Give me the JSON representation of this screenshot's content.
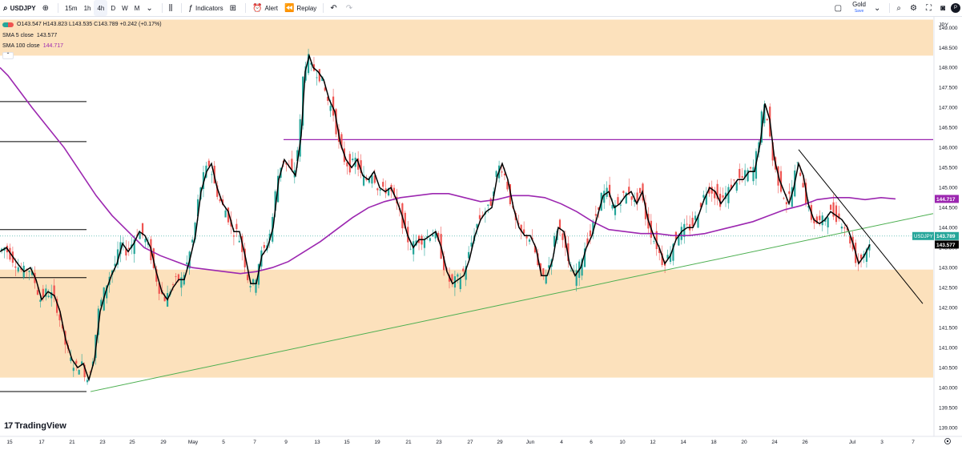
{
  "toolbar": {
    "symbol": "USDJPY",
    "add_symbol_icon": "plus-circle-icon",
    "intervals": [
      "15m",
      "1h",
      "4h",
      "D",
      "W",
      "M"
    ],
    "active_interval": "4h",
    "indicators_label": "Indicators",
    "alert_label": "Alert",
    "replay_label": "Replay",
    "layout_name": "Gold",
    "save_label": "Save",
    "avatar_letter": "P"
  },
  "legend": {
    "ohlc": "O143.547 H143.823 L143.535 C143.789 +0.242 (+0.17%)",
    "sma5_label": "SMA 5 close",
    "sma5_value": "143.577",
    "sma100_label": "SMA 100 close",
    "sma100_value": "144.717"
  },
  "branding": {
    "logo_text": "TradingView"
  },
  "colors": {
    "up": "#26a69a",
    "down": "#ef5350",
    "sma5": "#000000",
    "sma100": "#9c27b0",
    "zone": "#fbdcb0",
    "trend_up": "#4caf50",
    "trend_down": "#000000",
    "resistance": "#9c27b0",
    "price_label": "#26a69a"
  },
  "chart_data": {
    "type": "candlestick",
    "symbol": "USDJPY",
    "timeframe": "4h",
    "y_axis_unit": "JPY",
    "y_ticks": [
      "149.000",
      "148.500",
      "148.000",
      "147.500",
      "147.000",
      "146.500",
      "146.000",
      "145.500",
      "145.000",
      "144.500",
      "144.000",
      "143.500",
      "143.000",
      "142.500",
      "142.000",
      "141.500",
      "141.000",
      "140.500",
      "140.000",
      "139.500",
      "139.000"
    ],
    "x_ticks": [
      "15",
      "17",
      "21",
      "23",
      "25",
      "29",
      "May",
      "5",
      "7",
      "9",
      "13",
      "15",
      "19",
      "21",
      "23",
      "27",
      "29",
      "Jun",
      "4",
      "6",
      "10",
      "12",
      "14",
      "18",
      "20",
      "24",
      "26",
      "Jul",
      "3",
      "7"
    ],
    "ylim": [
      138.8,
      149.25
    ],
    "last_price": 143.789,
    "last_price_label": "143.789",
    "last_price_tag": "USDJPY",
    "sma5_last": 143.577,
    "sma5_last_label": "143.577",
    "sma100_last": 144.717,
    "sma100_last_label": "144.717",
    "close_path": [
      [
        0,
        143.4
      ],
      [
        8,
        143.5
      ],
      [
        15,
        143.3
      ],
      [
        22,
        143.1
      ],
      [
        30,
        142.9
      ],
      [
        38,
        143.0
      ],
      [
        45,
        142.7
      ],
      [
        52,
        142.2
      ],
      [
        60,
        142.4
      ],
      [
        68,
        142.3
      ],
      [
        75,
        141.9
      ],
      [
        82,
        141.2
      ],
      [
        90,
        140.7
      ],
      [
        97,
        140.5
      ],
      [
        104,
        140.6
      ],
      [
        111,
        140.2
      ],
      [
        118,
        140.7
      ],
      [
        125,
        141.9
      ],
      [
        132,
        142.4
      ],
      [
        139,
        142.8
      ],
      [
        146,
        143.1
      ],
      [
        153,
        143.6
      ],
      [
        160,
        143.4
      ],
      [
        167,
        143.6
      ],
      [
        174,
        143.9
      ],
      [
        181,
        143.8
      ],
      [
        188,
        143.5
      ],
      [
        195,
        142.9
      ],
      [
        202,
        142.4
      ],
      [
        209,
        142.2
      ],
      [
        216,
        142.5
      ],
      [
        223,
        142.7
      ],
      [
        230,
        142.7
      ],
      [
        237,
        143.2
      ],
      [
        244,
        143.8
      ],
      [
        251,
        144.9
      ],
      [
        258,
        145.4
      ],
      [
        264,
        145.6
      ],
      [
        271,
        145.0
      ],
      [
        278,
        144.6
      ],
      [
        285,
        144.4
      ],
      [
        292,
        143.9
      ],
      [
        299,
        143.9
      ],
      [
        306,
        143.3
      ],
      [
        313,
        142.6
      ],
      [
        320,
        142.6
      ],
      [
        327,
        143.3
      ],
      [
        334,
        143.5
      ],
      [
        341,
        144.0
      ],
      [
        348,
        145.2
      ],
      [
        355,
        145.7
      ],
      [
        362,
        145.5
      ],
      [
        369,
        145.3
      ],
      [
        376,
        146.3
      ],
      [
        381,
        147.9
      ],
      [
        386,
        148.3
      ],
      [
        391,
        148.0
      ],
      [
        397,
        147.9
      ],
      [
        404,
        147.7
      ],
      [
        411,
        147.2
      ],
      [
        418,
        146.9
      ],
      [
        425,
        146.1
      ],
      [
        432,
        145.7
      ],
      [
        439,
        145.5
      ],
      [
        446,
        145.7
      ],
      [
        453,
        145.3
      ],
      [
        460,
        145.2
      ],
      [
        467,
        145.4
      ],
      [
        474,
        145.0
      ],
      [
        481,
        144.9
      ],
      [
        488,
        145.0
      ],
      [
        495,
        144.7
      ],
      [
        502,
        144.3
      ],
      [
        509,
        143.8
      ],
      [
        516,
        143.5
      ],
      [
        523,
        143.7
      ],
      [
        530,
        143.7
      ],
      [
        537,
        143.8
      ],
      [
        544,
        143.9
      ],
      [
        551,
        143.5
      ],
      [
        558,
        142.9
      ],
      [
        565,
        142.6
      ],
      [
        572,
        142.7
      ],
      [
        579,
        142.8
      ],
      [
        586,
        143.2
      ],
      [
        593,
        143.8
      ],
      [
        600,
        144.2
      ],
      [
        607,
        144.4
      ],
      [
        614,
        144.5
      ],
      [
        621,
        145.3
      ],
      [
        627,
        145.6
      ],
      [
        634,
        145.2
      ],
      [
        641,
        144.5
      ],
      [
        648,
        144.0
      ],
      [
        655,
        143.8
      ],
      [
        662,
        143.8
      ],
      [
        669,
        143.5
      ],
      [
        676,
        142.8
      ],
      [
        683,
        142.8
      ],
      [
        690,
        143.2
      ],
      [
        697,
        144.0
      ],
      [
        704,
        143.9
      ],
      [
        711,
        143.1
      ],
      [
        718,
        142.8
      ],
      [
        725,
        143.0
      ],
      [
        732,
        143.5
      ],
      [
        739,
        143.8
      ],
      [
        746,
        144.3
      ],
      [
        753,
        144.8
      ],
      [
        760,
        144.9
      ],
      [
        767,
        144.5
      ],
      [
        774,
        144.6
      ],
      [
        781,
        144.8
      ],
      [
        788,
        144.9
      ],
      [
        795,
        144.6
      ],
      [
        802,
        144.9
      ],
      [
        809,
        144.2
      ],
      [
        816,
        143.8
      ],
      [
        823,
        143.5
      ],
      [
        830,
        143.1
      ],
      [
        837,
        143.3
      ],
      [
        844,
        143.7
      ],
      [
        851,
        143.9
      ],
      [
        858,
        144.0
      ],
      [
        865,
        144.0
      ],
      [
        872,
        144.3
      ],
      [
        879,
        144.7
      ],
      [
        886,
        145.0
      ],
      [
        893,
        144.9
      ],
      [
        900,
        144.6
      ],
      [
        907,
        144.8
      ],
      [
        914,
        145.0
      ],
      [
        921,
        145.2
      ],
      [
        928,
        145.2
      ],
      [
        935,
        145.4
      ],
      [
        942,
        145.4
      ],
      [
        949,
        146.1
      ],
      [
        955,
        147.1
      ],
      [
        961,
        146.7
      ],
      [
        967,
        145.7
      ],
      [
        973,
        145.2
      ],
      [
        979,
        144.9
      ],
      [
        985,
        144.6
      ],
      [
        991,
        145.0
      ],
      [
        997,
        145.6
      ],
      [
        1003,
        145.3
      ],
      [
        1009,
        144.6
      ],
      [
        1016,
        144.2
      ],
      [
        1023,
        144.1
      ],
      [
        1030,
        144.2
      ],
      [
        1037,
        144.4
      ],
      [
        1044,
        144.3
      ],
      [
        1051,
        144.2
      ],
      [
        1058,
        144.0
      ],
      [
        1065,
        143.6
      ],
      [
        1072,
        143.1
      ],
      [
        1079,
        143.3
      ],
      [
        1086,
        143.577
      ]
    ],
    "sma100_path": [
      [
        0,
        148.0
      ],
      [
        10,
        147.8
      ],
      [
        25,
        147.4
      ],
      [
        40,
        147.0
      ],
      [
        60,
        146.5
      ],
      [
        80,
        146.0
      ],
      [
        100,
        145.4
      ],
      [
        120,
        144.8
      ],
      [
        140,
        144.3
      ],
      [
        160,
        143.9
      ],
      [
        180,
        143.5
      ],
      [
        200,
        143.3
      ],
      [
        220,
        143.15
      ],
      [
        240,
        143.0
      ],
      [
        260,
        142.95
      ],
      [
        280,
        142.9
      ],
      [
        300,
        142.85
      ],
      [
        320,
        142.9
      ],
      [
        340,
        143.0
      ],
      [
        360,
        143.15
      ],
      [
        380,
        143.4
      ],
      [
        400,
        143.65
      ],
      [
        420,
        143.95
      ],
      [
        440,
        144.25
      ],
      [
        460,
        144.5
      ],
      [
        480,
        144.65
      ],
      [
        500,
        144.75
      ],
      [
        520,
        144.8
      ],
      [
        540,
        144.85
      ],
      [
        560,
        144.85
      ],
      [
        580,
        144.75
      ],
      [
        600,
        144.65
      ],
      [
        620,
        144.7
      ],
      [
        640,
        144.8
      ],
      [
        660,
        144.8
      ],
      [
        680,
        144.75
      ],
      [
        700,
        144.6
      ],
      [
        720,
        144.4
      ],
      [
        740,
        144.15
      ],
      [
        760,
        143.95
      ],
      [
        780,
        143.9
      ],
      [
        800,
        143.85
      ],
      [
        820,
        143.85
      ],
      [
        840,
        143.8
      ],
      [
        860,
        143.8
      ],
      [
        880,
        143.85
      ],
      [
        900,
        143.95
      ],
      [
        920,
        144.05
      ],
      [
        940,
        144.15
      ],
      [
        960,
        144.3
      ],
      [
        980,
        144.45
      ],
      [
        1000,
        144.55
      ],
      [
        1020,
        144.7
      ],
      [
        1040,
        144.75
      ],
      [
        1060,
        144.75
      ],
      [
        1080,
        144.7
      ],
      [
        1100,
        144.75
      ],
      [
        1118,
        144.717
      ]
    ],
    "zones": [
      {
        "from": 148.3,
        "to": 149.2,
        "label": ""
      },
      {
        "from": 140.25,
        "to": 142.95,
        "label": ""
      }
    ],
    "horizontal_levels": [
      {
        "price": 146.2,
        "from_x": 354,
        "to_x": 1165,
        "color": "#9c27b0",
        "width": 1.2
      },
      {
        "price": 147.15,
        "from_x": 0,
        "to_x": 108,
        "color": "#000000",
        "width": 1
      },
      {
        "price": 146.15,
        "from_x": 0,
        "to_x": 108,
        "color": "#000000",
        "width": 1
      },
      {
        "price": 143.95,
        "from_x": 0,
        "to_x": 108,
        "color": "#000000",
        "width": 1
      },
      {
        "price": 142.75,
        "from_x": 0,
        "to_x": 108,
        "color": "#000000",
        "width": 1
      },
      {
        "price": 139.9,
        "from_x": 0,
        "to_x": 108,
        "color": "#000000",
        "width": 1
      }
    ],
    "trendlines": [
      {
        "x1": 113,
        "p1": 139.9,
        "x2": 1165,
        "p2": 144.35,
        "color": "#4caf50"
      },
      {
        "x1": 997,
        "p1": 145.95,
        "x2": 1152,
        "p2": 142.1,
        "color": "#000000"
      }
    ],
    "grid": false,
    "last_candle_x": 1086
  }
}
